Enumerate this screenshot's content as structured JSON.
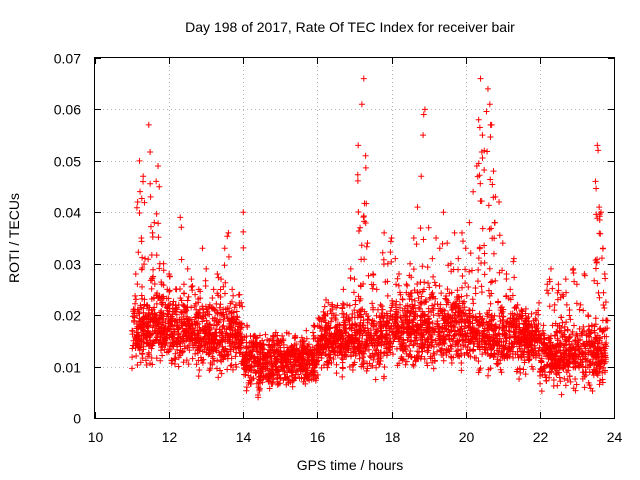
{
  "chart_data": {
    "type": "scatter",
    "title": "Day 198 of 2017, Rate Of TEC Index for receiver bair",
    "xlabel": "GPS time / hours",
    "ylabel": "ROTI / TECUs",
    "xlim": [
      10,
      24
    ],
    "ylim": [
      0,
      0.07
    ],
    "x_ticks": [
      "10",
      "12",
      "14",
      "16",
      "18",
      "20",
      "22",
      "24"
    ],
    "y_ticks": [
      "0",
      "0.01",
      "0.02",
      "0.03",
      "0.04",
      "0.05",
      "0.06",
      "0.07"
    ],
    "grid": true,
    "marker": "+",
    "color": "#ff0000",
    "series": [
      {
        "name": "ROTI",
        "points": [
          [
            11.1,
            0.028
          ],
          [
            11.15,
            0.042
          ],
          [
            11.2,
            0.05
          ],
          [
            11.25,
            0.035
          ],
          [
            11.3,
            0.047
          ],
          [
            11.35,
            0.031
          ],
          [
            11.4,
            0.022
          ],
          [
            11.45,
            0.057
          ],
          [
            11.5,
            0.043
          ],
          [
            11.55,
            0.036
          ],
          [
            11.6,
            0.038
          ],
          [
            11.65,
            0.046
          ],
          [
            11.7,
            0.049
          ],
          [
            11.75,
            0.03
          ],
          [
            11.8,
            0.026
          ],
          [
            11.85,
            0.03
          ],
          [
            11.9,
            0.022
          ],
          [
            11.95,
            0.025
          ],
          [
            12.0,
            0.028
          ],
          [
            12.05,
            0.019
          ],
          [
            12.1,
            0.022
          ],
          [
            12.2,
            0.025
          ],
          [
            12.3,
            0.039
          ],
          [
            12.4,
            0.026
          ],
          [
            12.5,
            0.029
          ],
          [
            12.6,
            0.027
          ],
          [
            12.7,
            0.024
          ],
          [
            12.8,
            0.025
          ],
          [
            12.9,
            0.033
          ],
          [
            13.0,
            0.029
          ],
          [
            13.1,
            0.022
          ],
          [
            13.2,
            0.025
          ],
          [
            13.3,
            0.028
          ],
          [
            13.4,
            0.027
          ],
          [
            13.5,
            0.033
          ],
          [
            13.6,
            0.036
          ],
          [
            13.7,
            0.025
          ],
          [
            13.8,
            0.022
          ],
          [
            13.9,
            0.024
          ],
          [
            14.0,
            0.04
          ],
          [
            14.1,
            0.018
          ],
          [
            14.2,
            0.012
          ],
          [
            14.3,
            0.016
          ],
          [
            14.4,
            0.004
          ],
          [
            14.5,
            0.014
          ],
          [
            14.6,
            0.012
          ],
          [
            14.7,
            0.015
          ],
          [
            14.8,
            0.016
          ],
          [
            14.9,
            0.01
          ],
          [
            15.0,
            0.015
          ],
          [
            15.1,
            0.013
          ],
          [
            15.2,
            0.012
          ],
          [
            15.3,
            0.014
          ],
          [
            15.4,
            0.016
          ],
          [
            15.5,
            0.012
          ],
          [
            15.6,
            0.015
          ],
          [
            15.7,
            0.017
          ],
          [
            15.8,
            0.013
          ],
          [
            15.9,
            0.018
          ],
          [
            16.0,
            0.015
          ],
          [
            16.1,
            0.016
          ],
          [
            16.2,
            0.02
          ],
          [
            16.3,
            0.018
          ],
          [
            16.4,
            0.022
          ],
          [
            16.5,
            0.02
          ],
          [
            16.6,
            0.018
          ],
          [
            16.7,
            0.025
          ],
          [
            16.8,
            0.022
          ],
          [
            16.9,
            0.029
          ],
          [
            17.0,
            0.027
          ],
          [
            17.1,
            0.053
          ],
          [
            17.15,
            0.037
          ],
          [
            17.2,
            0.061
          ],
          [
            17.25,
            0.066
          ],
          [
            17.3,
            0.051
          ],
          [
            17.35,
            0.034
          ],
          [
            17.5,
            0.028
          ],
          [
            17.6,
            0.025
          ],
          [
            17.7,
            0.022
          ],
          [
            17.8,
            0.036
          ],
          [
            17.9,
            0.03
          ],
          [
            18.0,
            0.035
          ],
          [
            18.1,
            0.031
          ],
          [
            18.2,
            0.028
          ],
          [
            18.3,
            0.023
          ],
          [
            18.4,
            0.026
          ],
          [
            18.5,
            0.03
          ],
          [
            18.6,
            0.035
          ],
          [
            18.7,
            0.041
          ],
          [
            18.8,
            0.047
          ],
          [
            18.85,
            0.055
          ],
          [
            18.9,
            0.06
          ],
          [
            19.0,
            0.037
          ],
          [
            19.1,
            0.031
          ],
          [
            19.2,
            0.035
          ],
          [
            19.3,
            0.033
          ],
          [
            19.4,
            0.04
          ],
          [
            19.5,
            0.034
          ],
          [
            19.6,
            0.03
          ],
          [
            19.7,
            0.036
          ],
          [
            19.8,
            0.031
          ],
          [
            19.9,
            0.036
          ],
          [
            20.0,
            0.033
          ],
          [
            20.1,
            0.038
          ],
          [
            20.2,
            0.044
          ],
          [
            20.3,
            0.049
          ],
          [
            20.35,
            0.058
          ],
          [
            20.4,
            0.066
          ],
          [
            20.45,
            0.055
          ],
          [
            20.5,
            0.052
          ],
          [
            20.6,
            0.064
          ],
          [
            20.65,
            0.061
          ],
          [
            20.7,
            0.057
          ],
          [
            20.75,
            0.048
          ],
          [
            20.8,
            0.043
          ],
          [
            20.9,
            0.042
          ],
          [
            21.0,
            0.034
          ],
          [
            21.1,
            0.028
          ],
          [
            21.2,
            0.025
          ],
          [
            21.3,
            0.031
          ],
          [
            21.4,
            0.022
          ],
          [
            21.5,
            0.021
          ],
          [
            21.6,
            0.019
          ],
          [
            21.7,
            0.018
          ],
          [
            21.8,
            0.017
          ],
          [
            21.9,
            0.019
          ],
          [
            22.0,
            0.016
          ],
          [
            22.1,
            0.018
          ],
          [
            22.2,
            0.026
          ],
          [
            22.3,
            0.029
          ],
          [
            22.4,
            0.022
          ],
          [
            22.5,
            0.026
          ],
          [
            22.6,
            0.024
          ],
          [
            22.7,
            0.027
          ],
          [
            22.8,
            0.021
          ],
          [
            22.9,
            0.029
          ],
          [
            23.0,
            0.026
          ],
          [
            23.1,
            0.022
          ],
          [
            23.2,
            0.028
          ],
          [
            23.3,
            0.02
          ],
          [
            23.4,
            0.018
          ],
          [
            23.5,
            0.046
          ],
          [
            23.55,
            0.053
          ],
          [
            23.6,
            0.041
          ],
          [
            23.65,
            0.04
          ],
          [
            23.7,
            0.033
          ],
          [
            23.75,
            0.028
          ],
          [
            23.8,
            0.019
          ]
        ],
        "dense_band": [
          {
            "x_from": 11.0,
            "x_to": 12.5,
            "y_min": 0.008,
            "y_max": 0.024
          },
          {
            "x_from": 12.5,
            "x_to": 14.0,
            "y_min": 0.007,
            "y_max": 0.022
          },
          {
            "x_from": 14.0,
            "x_to": 16.0,
            "y_min": 0.004,
            "y_max": 0.016
          },
          {
            "x_from": 16.0,
            "x_to": 18.0,
            "y_min": 0.006,
            "y_max": 0.022
          },
          {
            "x_from": 18.0,
            "x_to": 20.0,
            "y_min": 0.007,
            "y_max": 0.025
          },
          {
            "x_from": 20.0,
            "x_to": 22.0,
            "y_min": 0.007,
            "y_max": 0.022
          },
          {
            "x_from": 22.0,
            "x_to": 23.8,
            "y_min": 0.004,
            "y_max": 0.018
          }
        ]
      }
    ]
  }
}
